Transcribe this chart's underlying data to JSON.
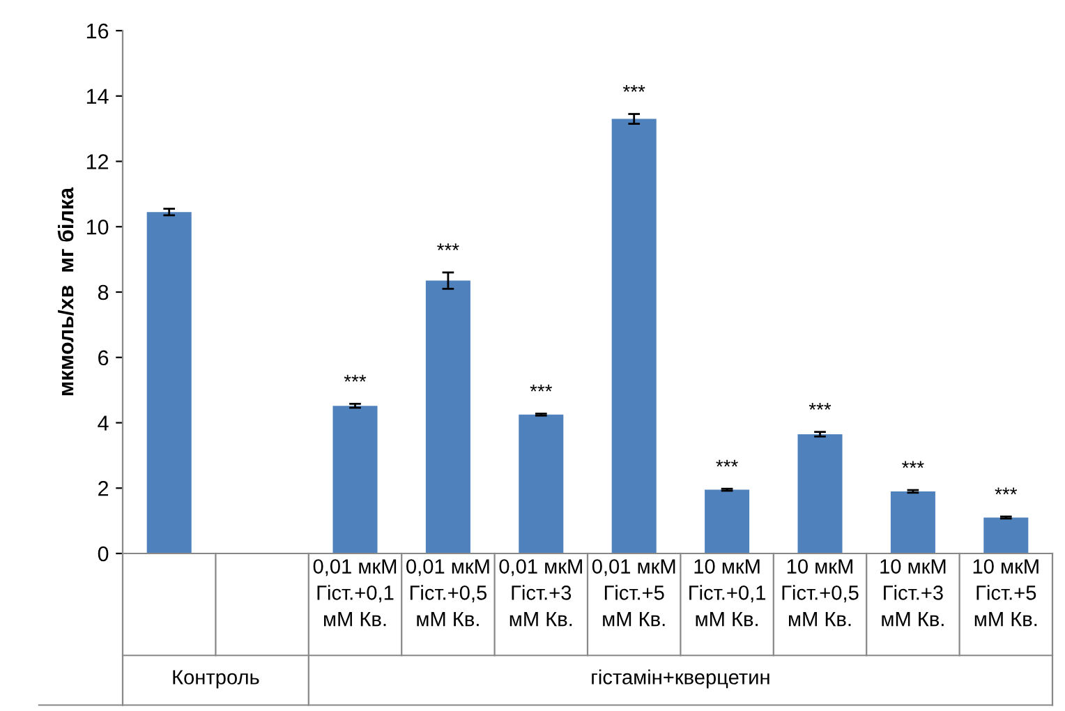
{
  "chart_data": {
    "type": "bar",
    "ylabel": "мкмоль/хв  мг білка",
    "categories": [
      null,
      null,
      "0,01 мкМ Гіст.+0,1 мМ Кв.",
      "0,01 мкМ Гіст.+0,5 мМ Кв.",
      "0,01 мкМ Гіст.+3 мМ Кв.",
      "0,01 мкМ Гіст.+5 мМ Кв.",
      "10 мкМ Гіст.+0,1 мМ Кв.",
      "10 мкМ Гіст.+0,5 мМ Кв.",
      "10 мкМ Гіст.+3 мМ Кв.",
      "10 мкМ Гіст.+5 мМ Кв."
    ],
    "values": [
      10.45,
      null,
      4.52,
      8.35,
      4.25,
      13.3,
      1.95,
      3.65,
      1.9,
      1.1
    ],
    "errors": [
      0.1,
      null,
      0.06,
      0.25,
      0.03,
      0.15,
      0.03,
      0.07,
      0.04,
      0.03
    ],
    "color": "#4f81bd",
    "ylim": [
      0,
      16
    ],
    "yticks": [
      0,
      2,
      4,
      6,
      8,
      10,
      12,
      14,
      16
    ],
    "grid": false,
    "legend": false,
    "annotations": [
      "Контроль",
      "гістамін+кверцетин",
      {
        "text": "***",
        "x": "0,01 мкМ Гіст.+0,1 мМ Кв.",
        "y": 4.52
      },
      {
        "text": "***",
        "x": "0,01 мкМ Гіст.+0,5 мМ Кв.",
        "y": 8.35
      },
      {
        "text": "***",
        "x": "0,01 мкМ Гіст.+3 мМ Кв.",
        "y": 4.25
      },
      {
        "text": "***",
        "x": "0,01 мкМ Гіст.+5 мМ Кв.",
        "y": 13.3
      },
      {
        "text": "***",
        "x": "10 мкМ Гіст.+0,1 мМ Кв.",
        "y": 1.95
      },
      {
        "text": "***",
        "x": "10 мкМ Гіст.+0,5 мМ Кв.",
        "y": 3.65
      },
      {
        "text": "***",
        "x": "10 мкМ Гіст.+3 мМ Кв.",
        "y": 1.9
      },
      {
        "text": "***",
        "x": "10 мкМ Гіст.+5 мМ Кв.",
        "y": 1.1
      }
    ]
  }
}
